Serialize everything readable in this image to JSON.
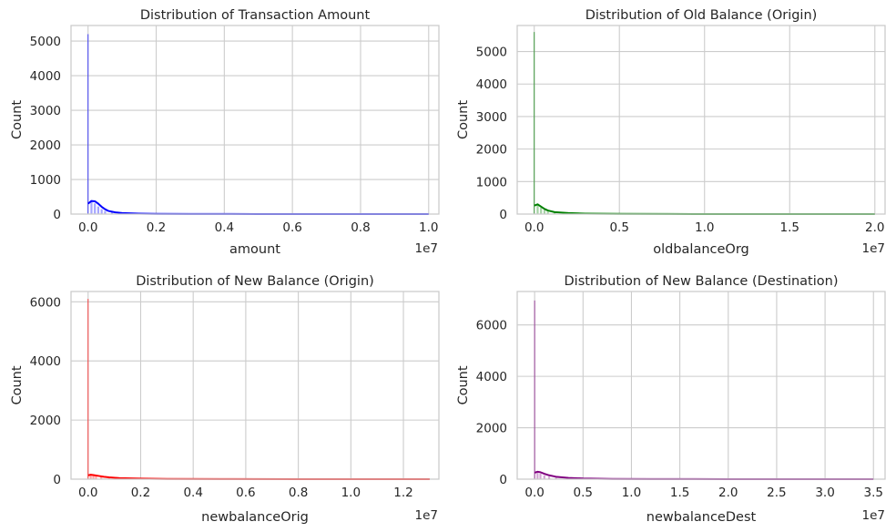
{
  "chart_data": [
    {
      "type": "histogram",
      "title": "Distribution of Transaction Amount",
      "xlabel": "amount",
      "ylabel": "Count",
      "x_offset_label": "1e7",
      "xlim": [
        -0.05,
        1.03
      ],
      "ylim": [
        0,
        5450
      ],
      "xticks": [
        0.0,
        0.2,
        0.4,
        0.6,
        0.8,
        1.0
      ],
      "xtick_labels": [
        "0.0",
        "0.2",
        "0.4",
        "0.6",
        "0.8",
        "1.0"
      ],
      "yticks": [
        0,
        1000,
        2000,
        3000,
        4000,
        5000
      ],
      "color": "#0000ff",
      "bins": [
        {
          "x": 0.0,
          "count": 5200
        },
        {
          "x": 0.01,
          "count": 380
        },
        {
          "x": 0.02,
          "count": 310
        },
        {
          "x": 0.03,
          "count": 220
        },
        {
          "x": 0.04,
          "count": 140
        },
        {
          "x": 0.05,
          "count": 90
        },
        {
          "x": 0.07,
          "count": 55
        },
        {
          "x": 0.1,
          "count": 30
        },
        {
          "x": 0.15,
          "count": 14
        },
        {
          "x": 0.25,
          "count": 6
        },
        {
          "x": 0.4,
          "count": 3
        }
      ],
      "kde": [
        [
          0.0,
          300
        ],
        [
          0.01,
          380
        ],
        [
          0.02,
          370
        ],
        [
          0.03,
          300
        ],
        [
          0.04,
          210
        ],
        [
          0.05,
          140
        ],
        [
          0.06,
          90
        ],
        [
          0.08,
          50
        ],
        [
          0.1,
          30
        ],
        [
          0.15,
          14
        ],
        [
          0.2,
          8
        ],
        [
          0.3,
          4
        ],
        [
          0.5,
          1
        ],
        [
          1.0,
          0
        ]
      ]
    },
    {
      "type": "histogram",
      "title": "Distribution of Old Balance (Origin)",
      "xlabel": "oldbalanceOrg",
      "ylabel": "Count",
      "x_offset_label": "1e7",
      "xlim": [
        -0.1,
        2.06
      ],
      "ylim": [
        0,
        5800
      ],
      "xticks": [
        0.0,
        0.5,
        1.0,
        1.5,
        2.0
      ],
      "xtick_labels": [
        "0.0",
        "0.5",
        "1.0",
        "1.5",
        "2.0"
      ],
      "yticks": [
        0,
        1000,
        2000,
        3000,
        4000,
        5000
      ],
      "color": "#008000",
      "bins": [
        {
          "x": 0.0,
          "count": 5600
        },
        {
          "x": 0.02,
          "count": 320
        },
        {
          "x": 0.04,
          "count": 200
        },
        {
          "x": 0.06,
          "count": 130
        },
        {
          "x": 0.08,
          "count": 80
        },
        {
          "x": 0.12,
          "count": 45
        },
        {
          "x": 0.2,
          "count": 22
        },
        {
          "x": 0.35,
          "count": 10
        },
        {
          "x": 0.6,
          "count": 4
        }
      ],
      "kde": [
        [
          0.0,
          260
        ],
        [
          0.02,
          300
        ],
        [
          0.04,
          230
        ],
        [
          0.06,
          160
        ],
        [
          0.08,
          110
        ],
        [
          0.12,
          60
        ],
        [
          0.2,
          30
        ],
        [
          0.3,
          15
        ],
        [
          0.5,
          6
        ],
        [
          0.8,
          2
        ],
        [
          1.2,
          0
        ],
        [
          2.0,
          0
        ]
      ]
    },
    {
      "type": "histogram",
      "title": "Distribution of New Balance (Origin)",
      "xlabel": "newbalanceOrig",
      "ylabel": "Count",
      "x_offset_label": "1e7",
      "xlim": [
        -0.065,
        1.335
      ],
      "ylim": [
        0,
        6350
      ],
      "xticks": [
        0.0,
        0.2,
        0.4,
        0.6,
        0.8,
        1.0,
        1.2
      ],
      "xtick_labels": [
        "0.0",
        "0.2",
        "0.4",
        "0.6",
        "0.8",
        "1.0",
        "1.2"
      ],
      "yticks": [
        0,
        2000,
        4000,
        6000
      ],
      "color": "#ff0000",
      "bins": [
        {
          "x": 0.0,
          "count": 6100
        },
        {
          "x": 0.01,
          "count": 160
        },
        {
          "x": 0.02,
          "count": 130
        },
        {
          "x": 0.03,
          "count": 100
        },
        {
          "x": 0.05,
          "count": 70
        },
        {
          "x": 0.08,
          "count": 45
        },
        {
          "x": 0.12,
          "count": 25
        },
        {
          "x": 0.2,
          "count": 12
        },
        {
          "x": 0.35,
          "count": 5
        }
      ],
      "kde": [
        [
          0.0,
          130
        ],
        [
          0.01,
          150
        ],
        [
          0.02,
          140
        ],
        [
          0.04,
          110
        ],
        [
          0.06,
          80
        ],
        [
          0.08,
          60
        ],
        [
          0.12,
          35
        ],
        [
          0.2,
          18
        ],
        [
          0.3,
          9
        ],
        [
          0.5,
          3
        ],
        [
          0.8,
          1
        ],
        [
          1.3,
          0
        ]
      ]
    },
    {
      "type": "histogram",
      "title": "Distribution of New Balance (Destination)",
      "xlabel": "newbalanceDest",
      "ylabel": "Count",
      "x_offset_label": "1e7",
      "xlim": [
        -0.18,
        3.62
      ],
      "ylim": [
        0,
        7300
      ],
      "xticks": [
        0.0,
        0.5,
        1.0,
        1.5,
        2.0,
        2.5,
        3.0,
        3.5
      ],
      "xtick_labels": [
        "0.0",
        "0.5",
        "1.0",
        "1.5",
        "2.0",
        "2.5",
        "3.0",
        "3.5"
      ],
      "yticks": [
        0,
        2000,
        4000,
        6000
      ],
      "color": "#800080",
      "bins": [
        {
          "x": 0.0,
          "count": 6950
        },
        {
          "x": 0.03,
          "count": 280
        },
        {
          "x": 0.06,
          "count": 220
        },
        {
          "x": 0.1,
          "count": 150
        },
        {
          "x": 0.15,
          "count": 95
        },
        {
          "x": 0.22,
          "count": 55
        },
        {
          "x": 0.35,
          "count": 28
        },
        {
          "x": 0.6,
          "count": 12
        },
        {
          "x": 1.0,
          "count": 4
        }
      ],
      "kde": [
        [
          0.0,
          250
        ],
        [
          0.03,
          290
        ],
        [
          0.06,
          270
        ],
        [
          0.1,
          210
        ],
        [
          0.15,
          150
        ],
        [
          0.22,
          95
        ],
        [
          0.35,
          50
        ],
        [
          0.5,
          25
        ],
        [
          0.8,
          10
        ],
        [
          1.2,
          4
        ],
        [
          2.0,
          1
        ],
        [
          3.5,
          0
        ]
      ]
    }
  ]
}
